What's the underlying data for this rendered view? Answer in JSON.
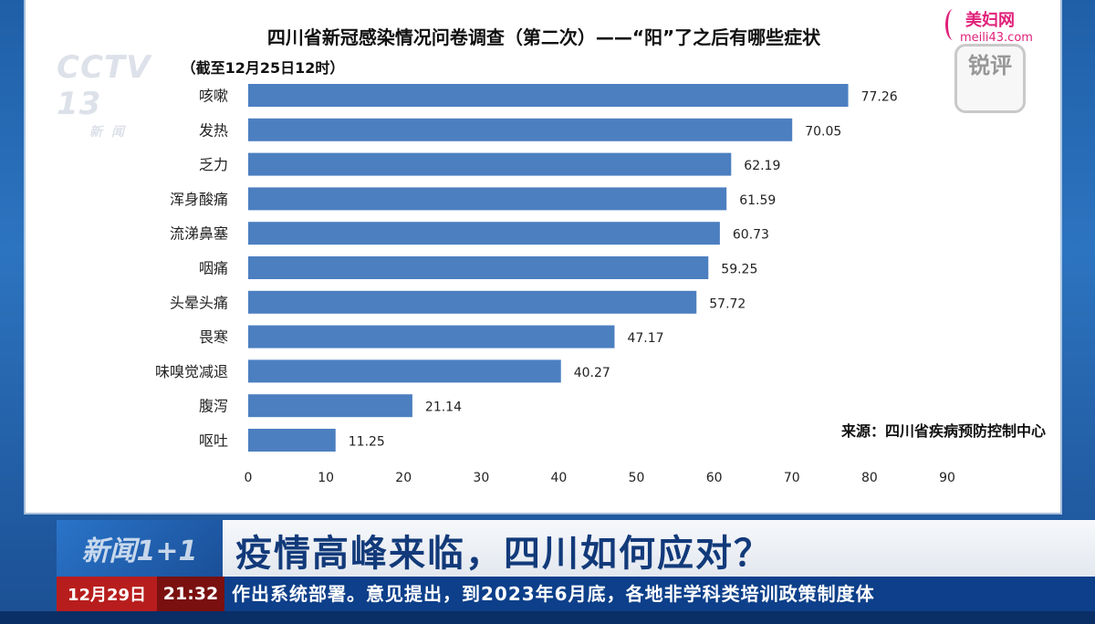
{
  "chart_data": {
    "type": "bar",
    "orientation": "horizontal",
    "title": "四川省新冠感染情况问卷调查（第二次）——“阳”了之后有哪些症状",
    "subtitle": "（截至12月25日12时）",
    "categories": [
      "咳嗽",
      "发热",
      "乏力",
      "浑身酸痛",
      "流涕鼻塞",
      "咽痛",
      "头晕头痛",
      "畏寒",
      "味嗅觉减退",
      "腹泻",
      "呕吐"
    ],
    "values": [
      77.26,
      70.05,
      62.19,
      61.59,
      60.73,
      59.25,
      57.72,
      47.17,
      40.27,
      21.14,
      11.25
    ],
    "value_labels": [
      "77.26",
      "70.05",
      "62.19",
      "61.59",
      "60.73",
      "59.25",
      "57.72",
      "47.17",
      "40.27",
      "21.14",
      "11.25"
    ],
    "xlim": [
      0,
      90
    ],
    "xticks": [
      0,
      10,
      20,
      30,
      40,
      50,
      60,
      70,
      80,
      90
    ],
    "xlabel": "",
    "ylabel": "",
    "grid": false,
    "bar_color": "#4c7fc0",
    "source": "来源：四川省疾病预防控制中心"
  },
  "watermark": {
    "cctv": "CCTV 13",
    "cctv_sub": "新闻",
    "site_name": "美妇网",
    "site_url": "meili43.com",
    "program_stamp": "锐评"
  },
  "banner": {
    "logo_text": "新闻1+1",
    "headline": "疫情高峰来临，四川如何应对？"
  },
  "ticker": {
    "date": "12月29日",
    "time": "21:32",
    "text": "作出系统部署。意见提出，到2023年6月底，各地非学科类培训政策制度体"
  },
  "colors": {
    "banner_accent": "#123a7a",
    "ticker_date_bg": "#b81d1d",
    "ticker_bg": "#0d3f8a"
  }
}
